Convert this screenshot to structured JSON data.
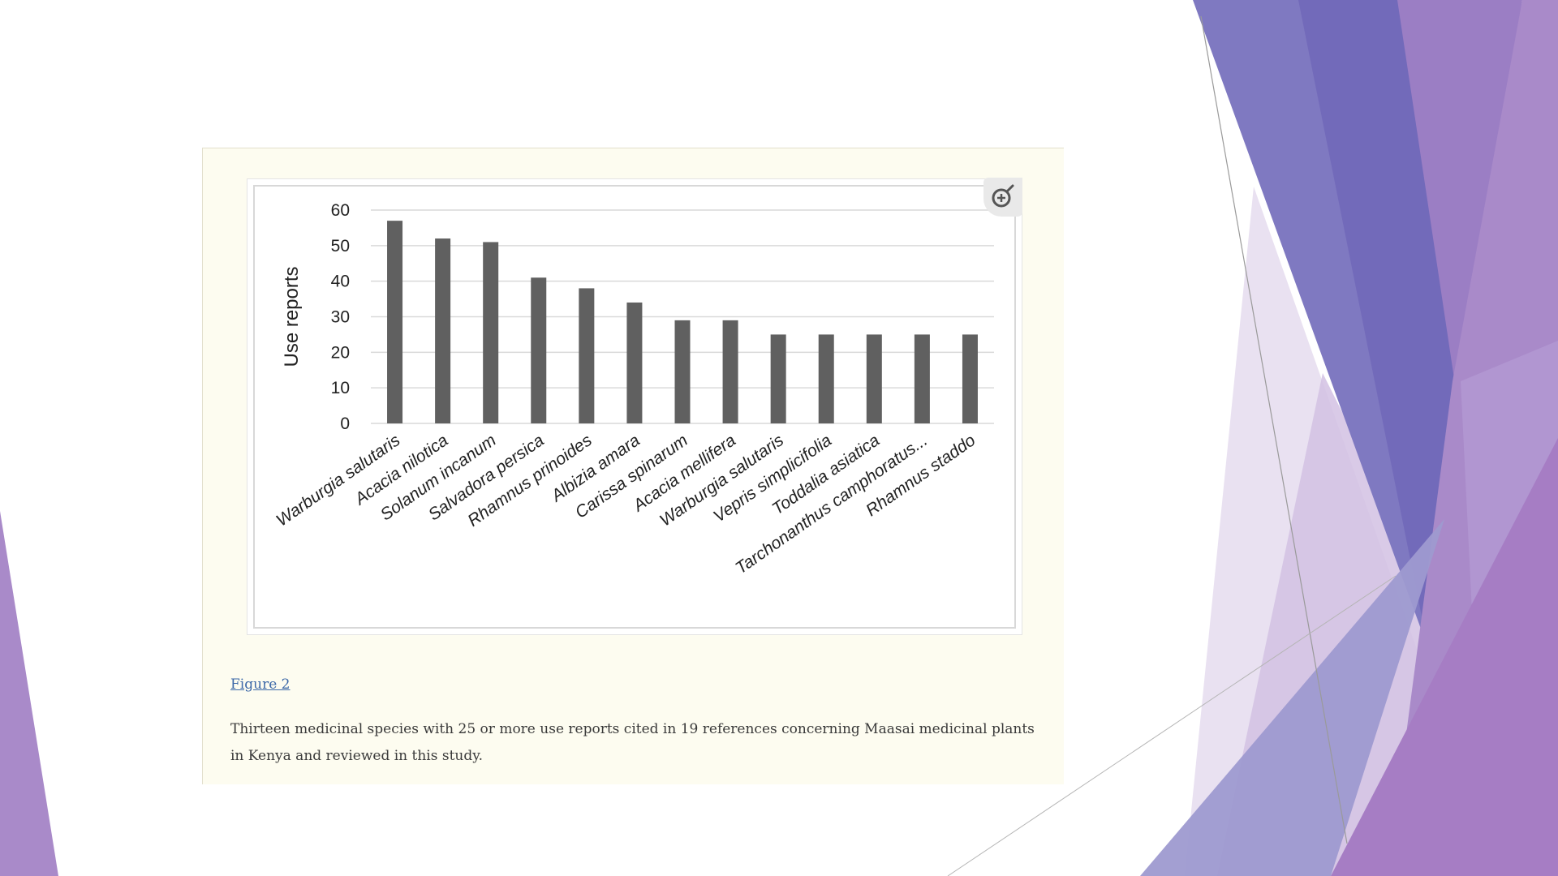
{
  "figure": {
    "link_label": "Figure 2",
    "caption": "Thirteen medicinal species with 25 or more use reports cited in 19 references concerning Maasai medicinal plants in Kenya and reviewed in this study.",
    "zoom_icon": "zoom-in-icon"
  },
  "chart_data": {
    "type": "bar",
    "title": "",
    "xlabel": "",
    "ylabel": "Use reports",
    "categories": [
      "Warburgia salutaris",
      "Acacia nilotica",
      "Solanum incanum",
      "Salvadora persica",
      "Rhamnus prinoides",
      "Albizia amara",
      "Carissa spinarum",
      "Acacia mellifera",
      "Warburgia salutaris",
      "Vepris simplicifolia",
      "Toddalia asiatica",
      "Tarchonanthus camphoratus...",
      "Rhamnus staddo"
    ],
    "values": [
      57,
      52,
      51,
      41,
      38,
      34,
      29,
      29,
      25,
      25,
      25,
      25,
      25
    ],
    "ylim": [
      0,
      60
    ],
    "yticks": [
      0,
      10,
      20,
      30,
      40,
      50,
      60
    ],
    "grid": true,
    "legend": "none",
    "colors": {
      "bar": "#606060",
      "grid": "#d9d9d9",
      "axis_text": "#222222"
    }
  },
  "theme": {
    "colors": {
      "purple_dark": "#6a65b8",
      "purple_mid": "#8b7fc6",
      "violet": "#a57cc4",
      "lavender": "#d6c8e6",
      "card_bg": "#fdfcf0",
      "link": "#3c68a8"
    }
  }
}
